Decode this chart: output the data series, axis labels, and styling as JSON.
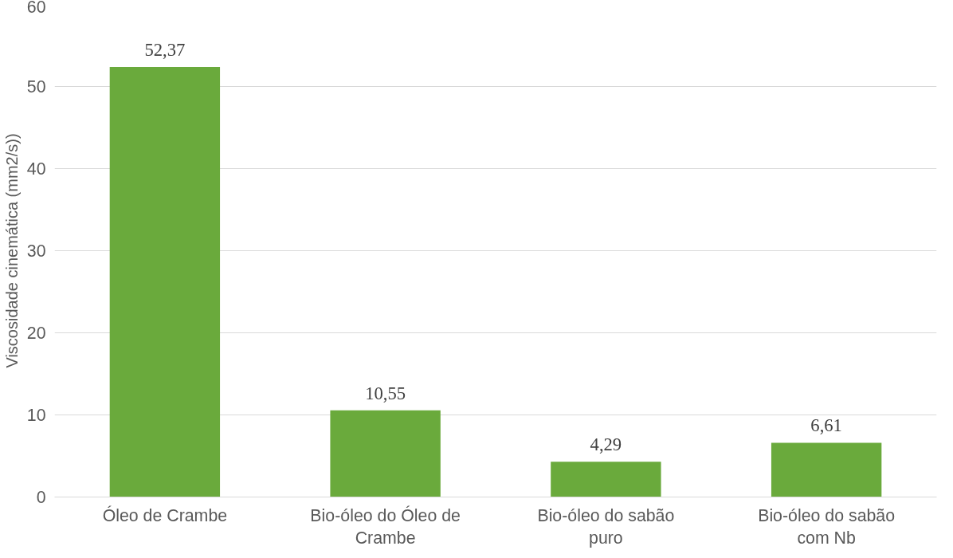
{
  "chart_data": {
    "type": "bar",
    "ylabel": "Viscosidade cinemática (mm2/s))",
    "categories": [
      "Óleo de Crambe",
      "Bio-óleo do Óleo de Crambe",
      "Bio-óleo do sabão puro",
      "Bio-óleo do sabão com Nb"
    ],
    "values": [
      52.37,
      10.55,
      4.29,
      6.61
    ],
    "value_labels": [
      "52,37",
      "10,55",
      "4,29",
      "6,61"
    ],
    "color": "#6aaa3c",
    "ylim": [
      0,
      60
    ],
    "yticks": [
      0,
      10,
      20,
      30,
      40,
      50,
      60
    ],
    "grid": "y"
  }
}
